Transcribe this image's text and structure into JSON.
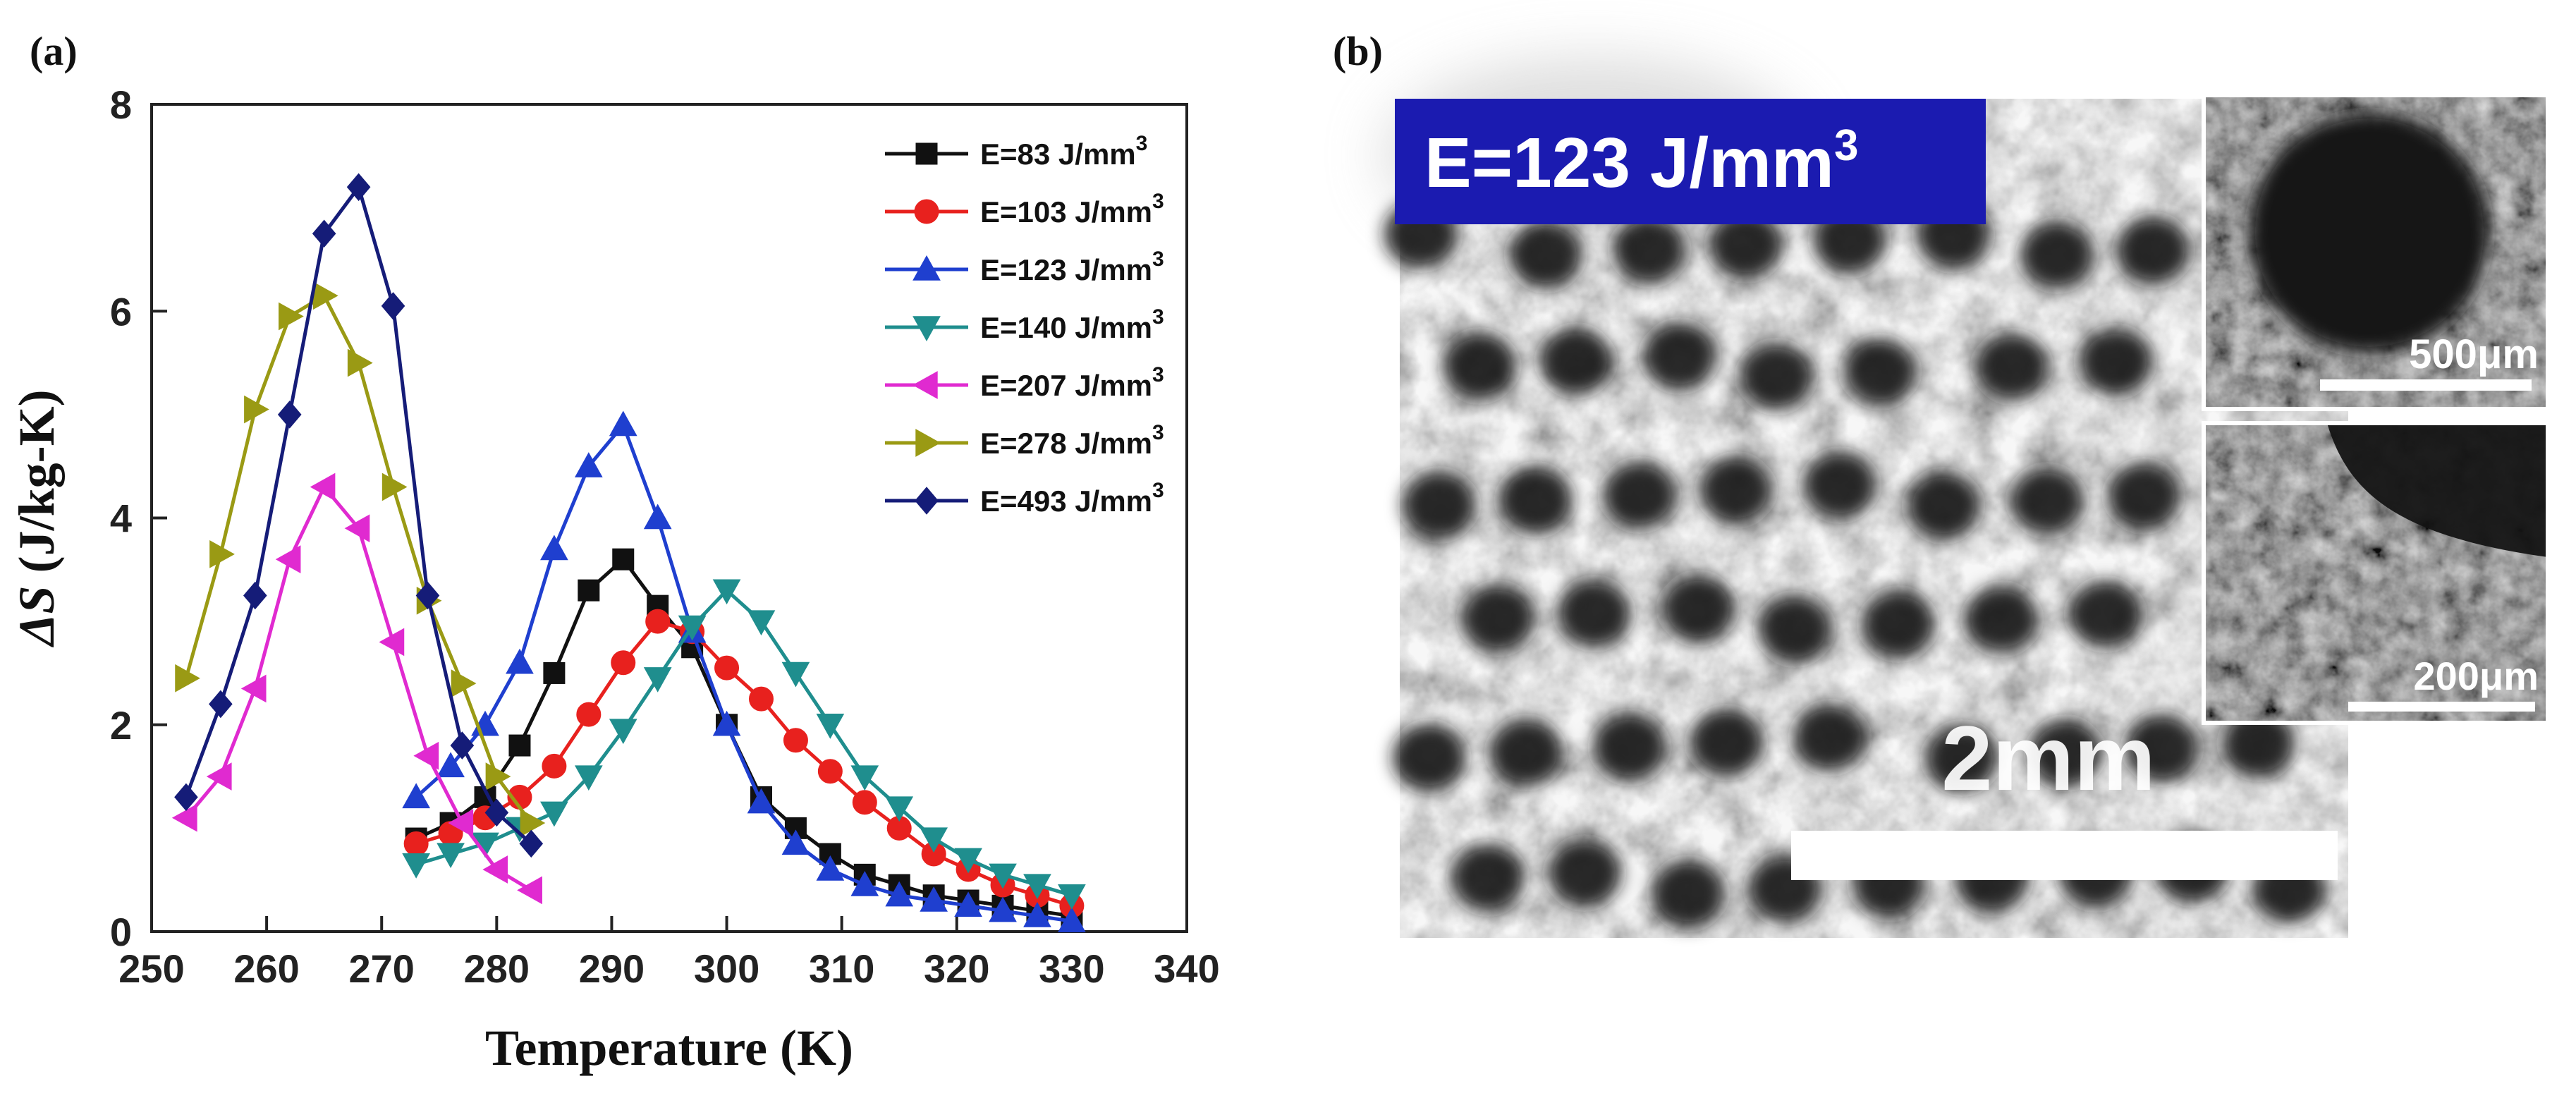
{
  "panels": {
    "a_label": "(a)",
    "b_label": "(b)"
  },
  "chart_data": {
    "type": "line",
    "title": "",
    "xlabel": "Temperature (K)",
    "ylabel_symbol": "ΔS",
    "ylabel_unit": " (J/kg-K)",
    "xlim": [
      250,
      340
    ],
    "ylim": [
      0,
      8
    ],
    "xticks": [
      250,
      260,
      270,
      280,
      290,
      300,
      310,
      320,
      330,
      340
    ],
    "yticks": [
      0,
      2,
      4,
      6,
      8
    ],
    "grid": false,
    "legend_position": "top-right",
    "series": [
      {
        "name": "E=83 J/mm",
        "sup": "3",
        "color": "#111111",
        "marker": "square",
        "x": [
          273,
          276,
          279,
          282,
          285,
          288,
          291,
          294,
          297,
          300,
          303,
          306,
          309,
          312,
          315,
          318,
          321,
          324,
          327,
          330
        ],
        "y": [
          0.9,
          1.05,
          1.3,
          1.8,
          2.5,
          3.3,
          3.6,
          3.15,
          2.75,
          2.0,
          1.3,
          1.0,
          0.75,
          0.55,
          0.45,
          0.35,
          0.3,
          0.25,
          0.2,
          0.15
        ]
      },
      {
        "name": "E=103 J/mm",
        "sup": "3",
        "color": "#e8211e",
        "marker": "circle",
        "x": [
          273,
          276,
          279,
          282,
          285,
          288,
          291,
          294,
          297,
          300,
          303,
          306,
          309,
          312,
          315,
          318,
          321,
          324,
          327,
          330
        ],
        "y": [
          0.85,
          0.95,
          1.1,
          1.3,
          1.6,
          2.1,
          2.6,
          3.0,
          2.9,
          2.55,
          2.25,
          1.85,
          1.55,
          1.25,
          1.0,
          0.75,
          0.6,
          0.45,
          0.35,
          0.25
        ]
      },
      {
        "name": "E=123 J/mm",
        "sup": "3",
        "color": "#1f3fcf",
        "marker": "triangle-up",
        "x": [
          273,
          276,
          279,
          282,
          285,
          288,
          291,
          294,
          297,
          300,
          303,
          306,
          309,
          312,
          315,
          318,
          321,
          324,
          327,
          330
        ],
        "y": [
          1.3,
          1.6,
          2.0,
          2.6,
          3.7,
          4.5,
          4.9,
          4.0,
          2.9,
          2.0,
          1.25,
          0.85,
          0.6,
          0.45,
          0.35,
          0.3,
          0.25,
          0.2,
          0.15,
          0.1
        ]
      },
      {
        "name": "E=140 J/mm",
        "sup": "3",
        "color": "#1f8e8e",
        "marker": "triangle-down",
        "x": [
          273,
          276,
          279,
          282,
          285,
          288,
          291,
          294,
          297,
          300,
          303,
          306,
          309,
          312,
          315,
          318,
          321,
          324,
          327,
          330
        ],
        "y": [
          0.65,
          0.75,
          0.85,
          1.0,
          1.15,
          1.5,
          1.95,
          2.45,
          2.95,
          3.3,
          3.0,
          2.5,
          2.0,
          1.5,
          1.2,
          0.9,
          0.7,
          0.55,
          0.45,
          0.35
        ]
      },
      {
        "name": "E=207 J/mm",
        "sup": "3",
        "color": "#e02ad0",
        "marker": "triangle-left",
        "x": [
          253,
          256,
          259,
          262,
          265,
          268,
          271,
          274,
          277,
          280,
          283
        ],
        "y": [
          1.1,
          1.5,
          2.35,
          3.6,
          4.3,
          3.9,
          2.8,
          1.7,
          1.05,
          0.6,
          0.4
        ]
      },
      {
        "name": "E=278 J/mm",
        "sup": "3",
        "color": "#9a9a14",
        "marker": "triangle-right",
        "x": [
          253,
          256,
          259,
          262,
          265,
          268,
          271,
          274,
          277,
          280,
          283
        ],
        "y": [
          2.45,
          3.65,
          5.05,
          5.95,
          6.15,
          5.5,
          4.3,
          3.2,
          2.4,
          1.5,
          1.05
        ]
      },
      {
        "name": "E=493 J/mm",
        "sup": "3",
        "color": "#151c78",
        "marker": "diamond",
        "x": [
          253,
          256,
          259,
          262,
          265,
          268,
          271,
          274,
          277,
          280,
          283
        ],
        "y": [
          1.3,
          2.2,
          3.25,
          5.0,
          6.75,
          7.2,
          6.05,
          3.25,
          1.8,
          1.15,
          0.85
        ]
      }
    ]
  },
  "micrograph": {
    "badge_text": "E=123 J/mm",
    "badge_sup": "3",
    "badge_color": "#1b1bb0",
    "scalebar_main": "2mm",
    "scalebar_inset_top": "500μm",
    "scalebar_inset_bottom": "200μm"
  }
}
